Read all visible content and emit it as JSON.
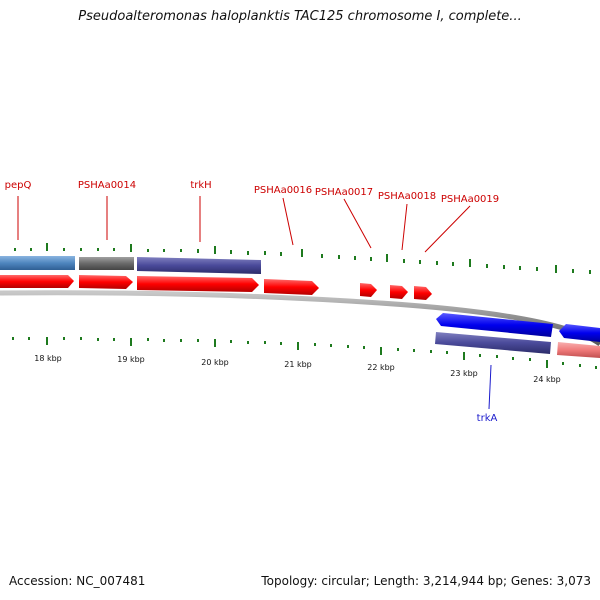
{
  "header": {
    "title": "Pseudoalteromonas haloplanktis TAC125 chromosome I, complete..."
  },
  "footer": {
    "accession": "Accession: NC_007481",
    "summary": "Topology: circular; Length: 3,214,944 bp; Genes: 3,073"
  },
  "map": {
    "colors": {
      "feature_red": "#ff0000",
      "feature_blue": "#0000ee",
      "feature_slate": "#4a4a9a",
      "feature_steelblue": "#4f86bf",
      "feature_gray": "#6a6a6a",
      "feature_pink": "#f07a7a",
      "backbone": "#8c8c8c",
      "tick_green": "#1e7a1e",
      "label_red": "#cc0000",
      "label_blue": "#1a1acc"
    },
    "scale_labels": [
      "18 kbp",
      "19 kbp",
      "20 kbp",
      "21 kbp",
      "22 kbp",
      "23 kbp",
      "24 kbp"
    ],
    "gene_labels_top": [
      "pepQ",
      "PSHAa0014",
      "trkH",
      "PSHAa0016",
      "PSHAa0017",
      "PSHAa0018",
      "PSHAa0019"
    ],
    "gene_labels_bottom": [
      "trkA"
    ]
  }
}
